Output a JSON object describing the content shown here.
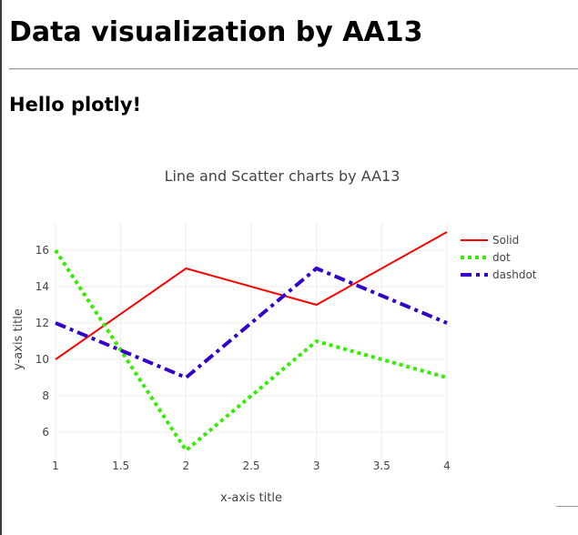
{
  "page": {
    "heading": "Data visualization by AA13",
    "subheading": "Hello plotly!"
  },
  "chart_data": {
    "type": "line",
    "title": "Line and Scatter charts by AA13",
    "xlabel": "x-axis title",
    "ylabel": "y-axis title",
    "xlim": [
      1,
      4
    ],
    "ylim": [
      4.5,
      17.5
    ],
    "x_ticks": [
      "1",
      "1.5",
      "2",
      "2.5",
      "3",
      "3.5",
      "4"
    ],
    "y_ticks": [
      "6",
      "8",
      "10",
      "12",
      "14",
      "16"
    ],
    "grid": true,
    "legend_position": "top-right",
    "series": [
      {
        "name": "Solid",
        "x": [
          1,
          2,
          3,
          4
        ],
        "y": [
          10,
          15,
          13,
          17
        ],
        "color": "#ff0000",
        "dash": "solid"
      },
      {
        "name": "dot",
        "x": [
          1,
          2,
          3,
          4
        ],
        "y": [
          16,
          5,
          11,
          9
        ],
        "color": "#33ee00",
        "dash": "dot"
      },
      {
        "name": "dashdot",
        "x": [
          1,
          2,
          3,
          4
        ],
        "y": [
          12,
          9,
          15,
          12
        ],
        "color": "#3300cc",
        "dash": "dashdot"
      }
    ]
  }
}
